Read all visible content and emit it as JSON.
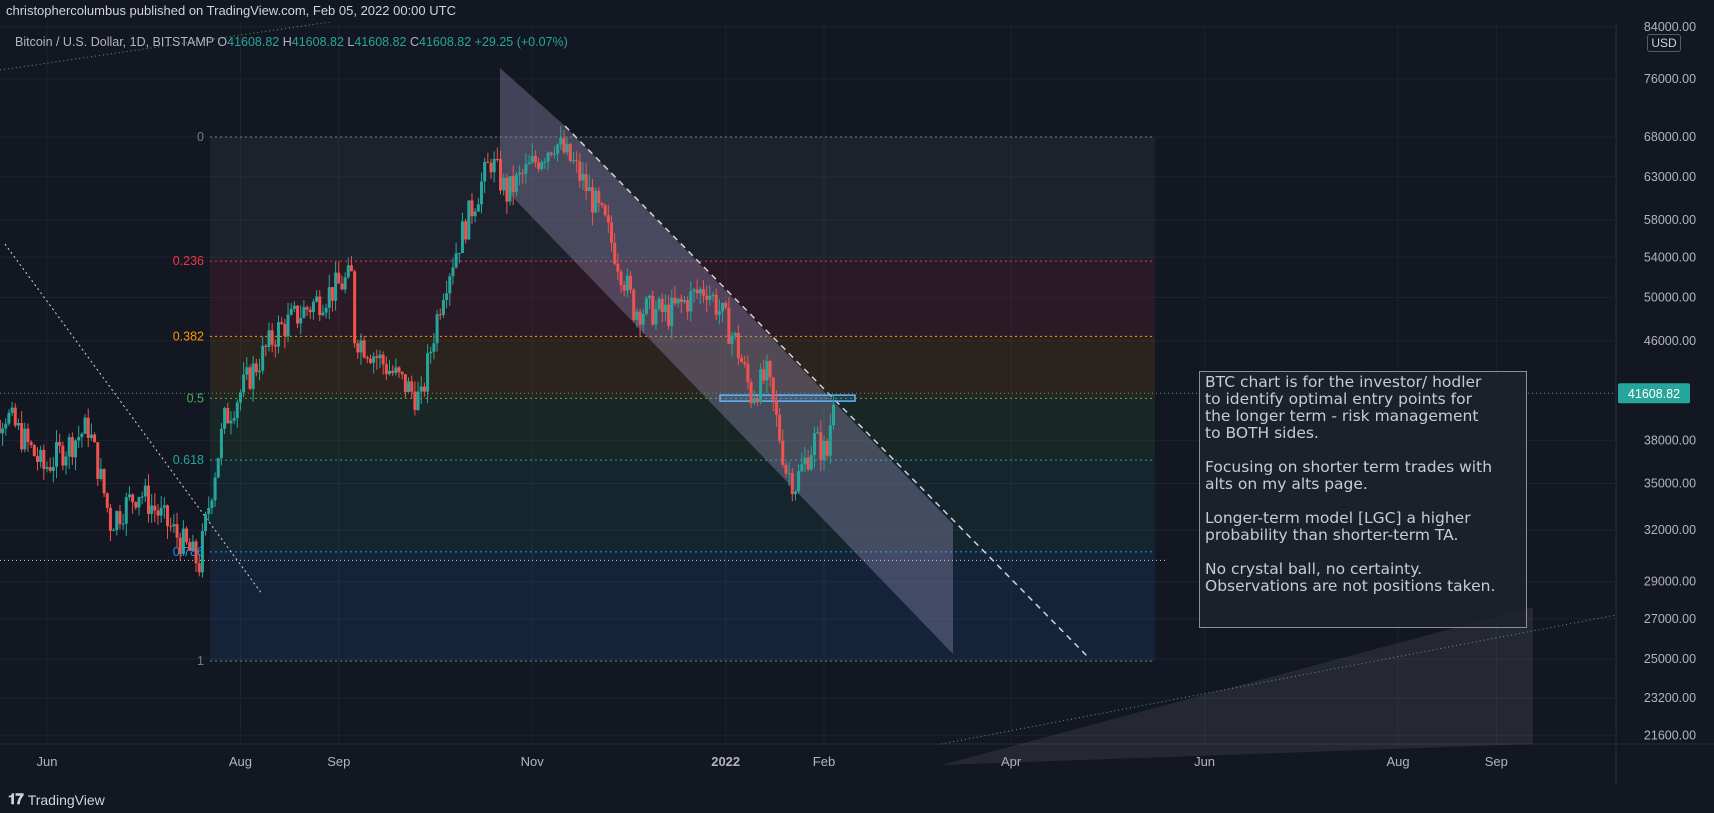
{
  "header": {
    "published_line": "christophercolumbus published on TradingView.com, Feb 05, 2022 00:00 UTC"
  },
  "legend": {
    "symbol": "Bitcoin / U.S. Dollar, 1D, BITSTAMP",
    "o_label": "O",
    "o_value": "41608.82",
    "h_label": "H",
    "h_value": "41608.82",
    "l_label": "L",
    "l_value": "41608.82",
    "c_label": "C",
    "c_value": "41608.82",
    "change": "+29.25 (+0.07%)"
  },
  "currency_button": "USD",
  "annotation": "BTC chart is for the investor/ hodler\nto identify optimal entry points for\nthe longer term - risk management\nto BOTH sides.\n\nFocusing on shorter term trades with\nalts on my alts page.\n\nLonger-term model [LGC] a higher\nprobability than shorter-term TA.\n\nNo crystal ball, no certainty.\nObservations are not positions taken.",
  "footer": {
    "brand": "TradingView"
  },
  "colors": {
    "bg": "#131722",
    "up": "#26a69a",
    "down": "#ef5350",
    "grid": "#1e2230",
    "price_tag": "#26a69a",
    "text": "#b2b5be"
  },
  "chart_data": {
    "type": "candlestick",
    "title": "Bitcoin / U.S. Dollar, 1D, BITSTAMP",
    "last_price": "41608.82",
    "y_scale": "log",
    "y_ticks": [
      "84000.00",
      "76000.00",
      "68000.00",
      "63000.00",
      "58000.00",
      "54000.00",
      "50000.00",
      "46000.00",
      "38000.00",
      "35000.00",
      "32000.00",
      "29000.00",
      "27000.00",
      "25000.00",
      "23200.00",
      "21600.00"
    ],
    "x_ticks": [
      "Jun",
      "Aug",
      "Sep",
      "Nov",
      "2022",
      "Feb",
      "Apr",
      "Jun",
      "Aug",
      "Sep"
    ],
    "fib_levels": [
      {
        "label": "0",
        "price": 68000,
        "color": "#787b86"
      },
      {
        "label": "0.236",
        "price": 53600,
        "color": "#f23645"
      },
      {
        "label": "0.382",
        "price": 46400,
        "color": "#ff9800"
      },
      {
        "label": "0.5",
        "price": 41200,
        "color": "#4caf50"
      },
      {
        "label": "0.618",
        "price": 36600,
        "color": "#26a69a"
      },
      {
        "label": "0.786",
        "price": 30700,
        "color": "#2196f3"
      },
      {
        "label": "1",
        "price": 24900,
        "color": "#787b86"
      }
    ],
    "price_path": [
      {
        "date": "2021-05-10",
        "close": 38000
      },
      {
        "date": "2021-05-20",
        "close": 40000
      },
      {
        "date": "2021-06-01",
        "close": 36000
      },
      {
        "date": "2021-06-15",
        "close": 39000
      },
      {
        "date": "2021-06-22",
        "close": 32500
      },
      {
        "date": "2021-07-01",
        "close": 34500
      },
      {
        "date": "2021-07-20",
        "close": 30000
      },
      {
        "date": "2021-07-28",
        "close": 39500
      },
      {
        "date": "2021-08-14",
        "close": 47000
      },
      {
        "date": "2021-09-06",
        "close": 52000
      },
      {
        "date": "2021-09-07",
        "close": 46500
      },
      {
        "date": "2021-09-20",
        "close": 43000
      },
      {
        "date": "2021-09-28",
        "close": 41000
      },
      {
        "date": "2021-10-05",
        "close": 51000
      },
      {
        "date": "2021-10-20",
        "close": 65000
      },
      {
        "date": "2021-10-25",
        "close": 61000
      },
      {
        "date": "2021-11-09",
        "close": 67500
      },
      {
        "date": "2021-11-15",
        "close": 64500
      },
      {
        "date": "2021-11-25",
        "close": 57500
      },
      {
        "date": "2021-12-04",
        "close": 49000
      },
      {
        "date": "2021-12-15",
        "close": 48500
      },
      {
        "date": "2021-12-27",
        "close": 51000
      },
      {
        "date": "2022-01-05",
        "close": 46000
      },
      {
        "date": "2022-01-10",
        "close": 41500
      },
      {
        "date": "2022-01-15",
        "close": 43000
      },
      {
        "date": "2022-01-21",
        "close": 36000
      },
      {
        "date": "2022-01-24",
        "close": 35000
      },
      {
        "date": "2022-01-30",
        "close": 38000
      },
      {
        "date": "2022-02-03",
        "close": 37000
      },
      {
        "date": "2022-02-05",
        "close": 41608.82
      }
    ]
  }
}
